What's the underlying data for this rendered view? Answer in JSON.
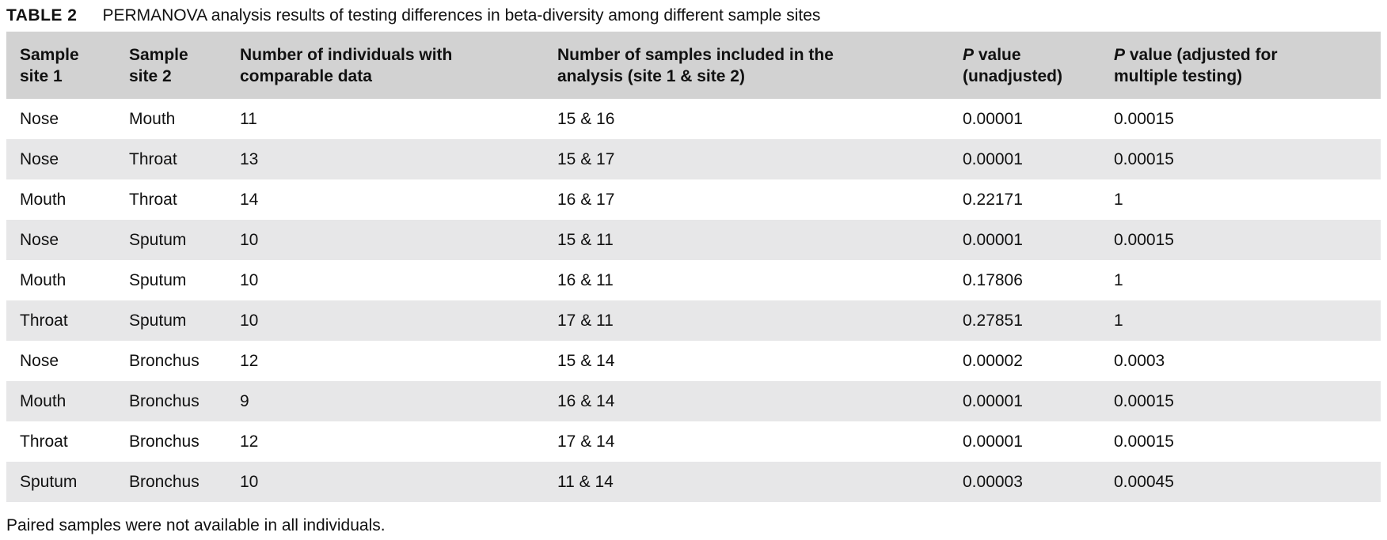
{
  "title": {
    "label": "TABLE 2",
    "caption": "PERMANOVA analysis results of testing differences in beta-diversity among different sample sites"
  },
  "colors": {
    "header_bg": "#d2d2d2",
    "row_stripe_bg": "#e7e7e8",
    "text": "#111111",
    "page_bg": "#ffffff"
  },
  "table": {
    "columns": [
      {
        "line1": "Sample",
        "line2": "site 1"
      },
      {
        "line1": "Sample",
        "line2": "site 2"
      },
      {
        "line1": "Number of individuals with",
        "line2": "comparable data"
      },
      {
        "line1": "Number of samples included in the",
        "line2": "analysis (site 1 & site 2)"
      },
      {
        "italic_prefix": "P",
        "line1_rest": " value",
        "line2": "(unadjusted)"
      },
      {
        "italic_prefix": "P",
        "line1_rest": " value (adjusted for",
        "line2": "multiple testing)"
      }
    ],
    "rows": [
      [
        "Nose",
        "Mouth",
        "11",
        "15 & 16",
        "0.00001",
        "0.00015"
      ],
      [
        "Nose",
        "Throat",
        "13",
        "15 & 17",
        "0.00001",
        "0.00015"
      ],
      [
        "Mouth",
        "Throat",
        "14",
        "16 & 17",
        "0.22171",
        "1"
      ],
      [
        "Nose",
        "Sputum",
        "10",
        "15 & 11",
        "0.00001",
        "0.00015"
      ],
      [
        "Mouth",
        "Sputum",
        "10",
        "16 & 11",
        "0.17806",
        "1"
      ],
      [
        "Throat",
        "Sputum",
        "10",
        "17 & 11",
        "0.27851",
        "1"
      ],
      [
        "Nose",
        "Bronchus",
        "12",
        "15 & 14",
        "0.00002",
        "0.0003"
      ],
      [
        "Mouth",
        "Bronchus",
        "9",
        "16 & 14",
        "0.00001",
        "0.00015"
      ],
      [
        "Throat",
        "Bronchus",
        "12",
        "17 & 14",
        "0.00001",
        "0.00015"
      ],
      [
        "Sputum",
        "Bronchus",
        "10",
        "11 & 14",
        "0.00003",
        "0.00045"
      ]
    ]
  },
  "footnote": "Paired samples were not available in all individuals."
}
